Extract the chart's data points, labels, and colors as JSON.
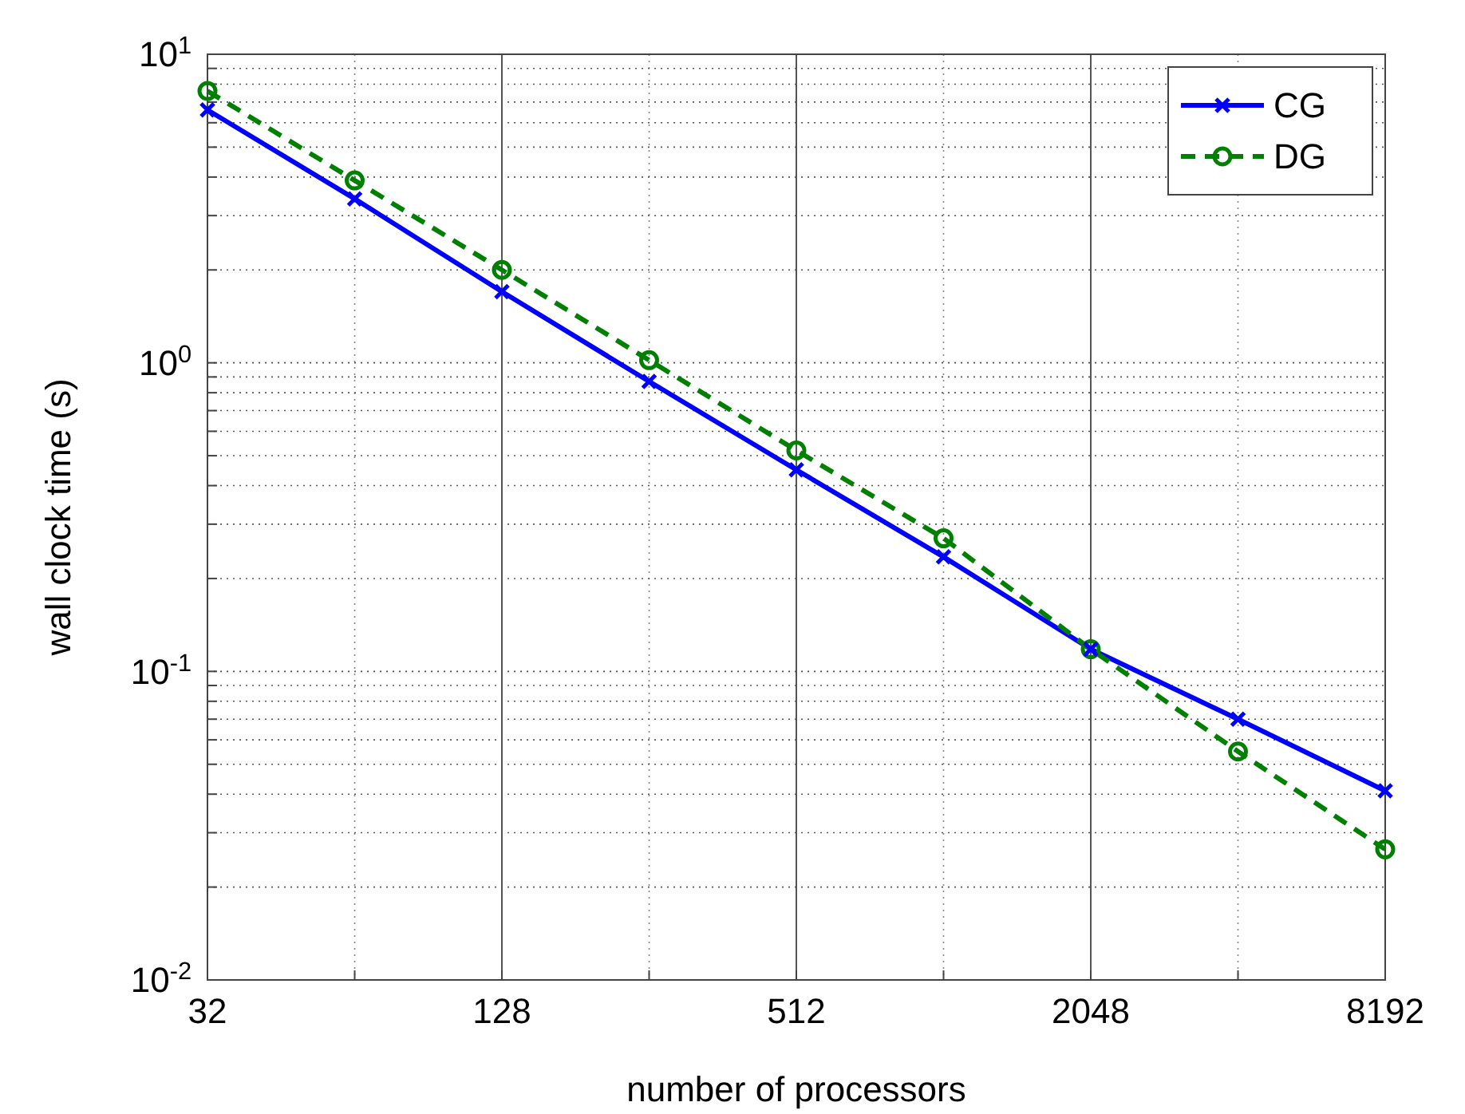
{
  "chart_data": {
    "type": "line",
    "xlabel": "number of processors",
    "ylabel": "wall clock time (s)",
    "log": "xy",
    "grid": true,
    "legend": "top right",
    "x": [
      32,
      64,
      128,
      256,
      512,
      1024,
      2048,
      4096,
      8192
    ],
    "xlim": [
      32,
      8192
    ],
    "xticks": [
      32,
      {
        "value": 64,
        "label": null
      },
      128,
      {
        "value": 256,
        "label": null
      },
      512,
      {
        "value": 1024,
        "label": null
      },
      2048,
      {
        "value": 4096,
        "label": null
      },
      8192
    ],
    "ylim": [
      0.01,
      10
    ],
    "yticks": [
      {
        "value": 0.01,
        "label": "10$^{-2}$"
      },
      {
        "value": 0.02,
        "label": null
      },
      {
        "value": 0.03,
        "label": null
      },
      {
        "value": 0.04,
        "label": null
      },
      {
        "value": 0.05,
        "label": null
      },
      {
        "value": 0.06,
        "label": null
      },
      {
        "value": 0.07,
        "label": null
      },
      {
        "value": 0.08,
        "label": null
      },
      {
        "value": 0.09,
        "label": null
      },
      {
        "value": 0.1,
        "label": "10$^{-1}$"
      },
      {
        "value": 0.2,
        "label": null
      },
      {
        "value": 0.3,
        "label": null
      },
      {
        "value": 0.4,
        "label": null
      },
      {
        "value": 0.5,
        "label": null
      },
      {
        "value": 0.6,
        "label": null
      },
      {
        "value": 0.7,
        "label": null
      },
      {
        "value": 0.8,
        "label": null
      },
      {
        "value": 0.9,
        "label": null
      },
      {
        "value": 1,
        "label": "10$^{0}$"
      },
      {
        "value": 2,
        "label": null
      },
      {
        "value": 3,
        "label": null
      },
      {
        "value": 4,
        "label": null
      },
      {
        "value": 5,
        "label": null
      },
      {
        "value": 6,
        "label": null
      },
      {
        "value": 7,
        "label": null
      },
      {
        "value": 8,
        "label": null
      },
      {
        "value": 9,
        "label": null
      },
      {
        "value": 10,
        "label": "10$^{1}$"
      }
    ],
    "series": [
      {
        "name": "CG",
        "color": "#0000ff",
        "marker": "cross",
        "line_style": "solid",
        "values": [
          6.6,
          3.4,
          1.7,
          0.87,
          0.45,
          0.235,
          0.118,
          0.07,
          0.041
        ]
      },
      {
        "name": "DG",
        "color": "#008000",
        "marker": "circle",
        "line_style": "dashed",
        "values": [
          7.6,
          3.9,
          2.0,
          1.02,
          0.52,
          0.27,
          0.118,
          0.055,
          0.0265
        ]
      }
    ]
  }
}
